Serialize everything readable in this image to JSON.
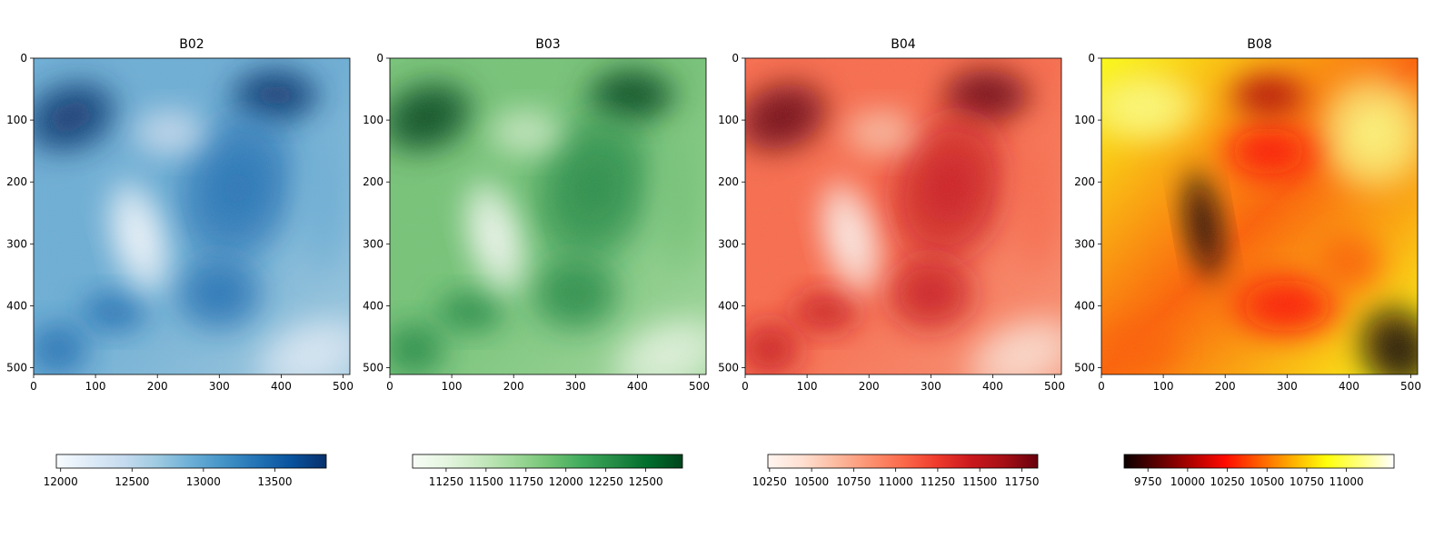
{
  "chart_data": [
    {
      "type": "heatmap",
      "title": "B02",
      "cmap": "Blues",
      "xlim": [
        0,
        511
      ],
      "ylim": [
        511,
        0
      ],
      "xticks": [
        0,
        100,
        200,
        300,
        400,
        500
      ],
      "yticks": [
        0,
        100,
        200,
        300,
        400,
        500
      ],
      "colorbar": {
        "orientation": "horizontal",
        "range": [
          11970,
          13860
        ],
        "ticks": [
          12000,
          12500,
          13000,
          13500
        ],
        "tick_labels": [
          "12000",
          "12500",
          "13000",
          "13500"
        ]
      }
    },
    {
      "type": "heatmap",
      "title": "B03",
      "cmap": "Greens",
      "xlim": [
        0,
        511
      ],
      "ylim": [
        511,
        0
      ],
      "xticks": [
        0,
        100,
        200,
        300,
        400,
        500
      ],
      "yticks": [
        0,
        100,
        200,
        300,
        400,
        500
      ],
      "colorbar": {
        "orientation": "horizontal",
        "range": [
          11040,
          12730
        ],
        "ticks": [
          11250,
          11500,
          11750,
          12000,
          12250,
          12500
        ],
        "tick_labels": [
          "11250",
          "11500",
          "11750",
          "12000",
          "12250",
          "12500"
        ]
      }
    },
    {
      "type": "heatmap",
      "title": "B04",
      "cmap": "Reds",
      "xlim": [
        0,
        511
      ],
      "ylim": [
        511,
        0
      ],
      "xticks": [
        0,
        100,
        200,
        300,
        400,
        500
      ],
      "yticks": [
        0,
        100,
        200,
        300,
        400,
        500
      ],
      "colorbar": {
        "orientation": "horizontal",
        "range": [
          10240,
          11845
        ],
        "ticks": [
          10250,
          10500,
          10750,
          11000,
          11250,
          11500,
          11750
        ],
        "tick_labels": [
          "10250",
          "10500",
          "10750",
          "11000",
          "11250",
          "11500",
          "11750"
        ]
      }
    },
    {
      "type": "heatmap",
      "title": "B08",
      "cmap": "hot",
      "xlim": [
        0,
        511
      ],
      "ylim": [
        511,
        0
      ],
      "xticks": [
        0,
        100,
        200,
        300,
        400,
        500
      ],
      "yticks": [
        0,
        100,
        200,
        300,
        400,
        500
      ],
      "colorbar": {
        "orientation": "horizontal",
        "range": [
          9600,
          11300
        ],
        "ticks": [
          9750,
          10000,
          10250,
          10500,
          10750,
          11000
        ],
        "tick_labels": [
          "9750",
          "10000",
          "10250",
          "10500",
          "10750",
          "11000"
        ]
      }
    }
  ]
}
